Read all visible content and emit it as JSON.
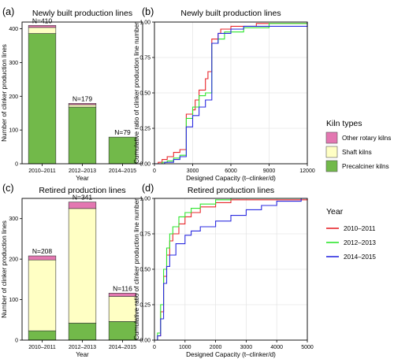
{
  "figure": {
    "legend_kiln": {
      "title": "Kiln types",
      "items": [
        {
          "label": "Other rotary kilns",
          "color": "#e377b1"
        },
        {
          "label": "Shaft kilns",
          "color": "#ffffc4"
        },
        {
          "label": "Precalciner kilns",
          "color": "#72b94a"
        }
      ]
    },
    "legend_year": {
      "title": "Year",
      "items": [
        {
          "label": "2010–2011",
          "color": "#e8262b"
        },
        {
          "label": "2012–2013",
          "color": "#2ee62e"
        },
        {
          "label": "2014–2015",
          "color": "#2b2be0"
        }
      ]
    }
  },
  "chart_data": [
    {
      "panel": "(a)",
      "type": "bar",
      "stacked": true,
      "title": "Newly built production lines",
      "xlabel": "Year",
      "ylabel": "Number of clinker production lines",
      "categories": [
        "2010–2011",
        "2012–2013",
        "2014–2015"
      ],
      "series": [
        {
          "name": "Precalciner kilns",
          "values": [
            386,
            168,
            79
          ]
        },
        {
          "name": "Shaft kilns",
          "values": [
            18,
            7,
            0
          ]
        },
        {
          "name": "Other rotary kilns",
          "values": [
            6,
            4,
            0
          ]
        }
      ],
      "annotations": [
        "N=410",
        "N=179",
        "N=79"
      ],
      "ylim": [
        0,
        420
      ],
      "yticks": [
        0,
        100,
        200,
        300,
        400
      ]
    },
    {
      "panel": "(b)",
      "type": "line",
      "step": true,
      "title": "Newly built production lines",
      "xlabel": "Designed Capacity (t–clinker/d)",
      "ylabel": "Cumulative ratio of clinker production line number",
      "xlim": [
        0,
        12000
      ],
      "ylim": [
        0,
        1
      ],
      "xticks": [
        0,
        3000,
        6000,
        9000,
        12000
      ],
      "yticks": [
        0.0,
        0.25,
        0.5,
        0.75,
        1.0
      ],
      "series": [
        {
          "name": "2010–2011",
          "points": [
            [
              0,
              0
            ],
            [
              300,
              0.01
            ],
            [
              600,
              0.03
            ],
            [
              1000,
              0.05
            ],
            [
              1500,
              0.08
            ],
            [
              2000,
              0.1
            ],
            [
              2500,
              0.12
            ],
            [
              2500,
              0.35
            ],
            [
              3000,
              0.38
            ],
            [
              3200,
              0.45
            ],
            [
              3500,
              0.52
            ],
            [
              4000,
              0.6
            ],
            [
              4200,
              0.65
            ],
            [
              4500,
              0.65
            ],
            [
              4500,
              0.88
            ],
            [
              5000,
              0.92
            ],
            [
              5200,
              0.95
            ],
            [
              6000,
              0.97
            ],
            [
              8000,
              0.99
            ],
            [
              12000,
              1.0
            ]
          ]
        },
        {
          "name": "2012–2013",
          "points": [
            [
              0,
              0
            ],
            [
              600,
              0.01
            ],
            [
              1000,
              0.02
            ],
            [
              1500,
              0.04
            ],
            [
              2000,
              0.06
            ],
            [
              2500,
              0.08
            ],
            [
              2500,
              0.32
            ],
            [
              3000,
              0.4
            ],
            [
              3500,
              0.48
            ],
            [
              4000,
              0.5
            ],
            [
              4500,
              0.5
            ],
            [
              4500,
              0.85
            ],
            [
              5000,
              0.88
            ],
            [
              5500,
              0.93
            ],
            [
              7000,
              0.96
            ],
            [
              9000,
              0.99
            ],
            [
              12000,
              1.0
            ]
          ]
        },
        {
          "name": "2014–2015",
          "points": [
            [
              0,
              0
            ],
            [
              800,
              0.01
            ],
            [
              1500,
              0.03
            ],
            [
              2000,
              0.05
            ],
            [
              2500,
              0.07
            ],
            [
              2500,
              0.26
            ],
            [
              3000,
              0.34
            ],
            [
              3500,
              0.4
            ],
            [
              4000,
              0.45
            ],
            [
              4500,
              0.45
            ],
            [
              4500,
              0.85
            ],
            [
              5000,
              0.92
            ],
            [
              6000,
              0.95
            ],
            [
              7000,
              0.97
            ],
            [
              12000,
              1.0
            ]
          ]
        }
      ]
    },
    {
      "panel": "(c)",
      "type": "bar",
      "stacked": true,
      "title": "Retired production lines",
      "xlabel": "Year",
      "ylabel": "Number of clinker production lines",
      "categories": [
        "2010–2011",
        "2012–2013",
        "2014–2015"
      ],
      "series": [
        {
          "name": "Precalciner kilns",
          "values": [
            23,
            42,
            46
          ]
        },
        {
          "name": "Shaft kilns",
          "values": [
            175,
            283,
            62
          ]
        },
        {
          "name": "Other rotary kilns",
          "values": [
            10,
            16,
            8
          ]
        }
      ],
      "annotations": [
        "N=208",
        "N=341",
        "N=116"
      ],
      "ylim": [
        0,
        350
      ],
      "yticks": [
        0,
        100,
        200,
        300
      ]
    },
    {
      "panel": "(d)",
      "type": "line",
      "step": true,
      "title": "Retired production lines",
      "xlabel": "Designed Capacity (t–clinker/d)",
      "ylabel": "Cumulative ratio of clinker production line number",
      "xlim": [
        0,
        5000
      ],
      "ylim": [
        0,
        1
      ],
      "xticks": [
        0,
        1000,
        2000,
        3000,
        4000,
        5000
      ],
      "yticks": [
        0.0,
        0.25,
        0.5,
        0.75,
        1.0
      ],
      "series": [
        {
          "name": "2010–2011",
          "points": [
            [
              0,
              0
            ],
            [
              100,
              0.03
            ],
            [
              200,
              0.2
            ],
            [
              300,
              0.45
            ],
            [
              400,
              0.6
            ],
            [
              500,
              0.7
            ],
            [
              600,
              0.75
            ],
            [
              800,
              0.82
            ],
            [
              1000,
              0.87
            ],
            [
              1200,
              0.9
            ],
            [
              1500,
              0.94
            ],
            [
              2000,
              0.97
            ],
            [
              2500,
              0.99
            ],
            [
              5000,
              1.0
            ]
          ]
        },
        {
          "name": "2012–2013",
          "points": [
            [
              0,
              0
            ],
            [
              100,
              0.05
            ],
            [
              200,
              0.25
            ],
            [
              300,
              0.5
            ],
            [
              400,
              0.65
            ],
            [
              500,
              0.75
            ],
            [
              600,
              0.8
            ],
            [
              800,
              0.87
            ],
            [
              1000,
              0.9
            ],
            [
              1200,
              0.93
            ],
            [
              1500,
              0.96
            ],
            [
              2000,
              0.99
            ],
            [
              2500,
              1.0
            ],
            [
              5000,
              1.0
            ]
          ]
        },
        {
          "name": "2014–2015",
          "points": [
            [
              0,
              0
            ],
            [
              100,
              0.03
            ],
            [
              200,
              0.15
            ],
            [
              300,
              0.4
            ],
            [
              400,
              0.52
            ],
            [
              500,
              0.6
            ],
            [
              700,
              0.68
            ],
            [
              1000,
              0.74
            ],
            [
              1200,
              0.77
            ],
            [
              1500,
              0.8
            ],
            [
              2000,
              0.84
            ],
            [
              2500,
              0.88
            ],
            [
              3000,
              0.92
            ],
            [
              3500,
              0.95
            ],
            [
              4000,
              0.98
            ],
            [
              4800,
              1.0
            ],
            [
              5000,
              1.0
            ]
          ]
        }
      ]
    }
  ]
}
